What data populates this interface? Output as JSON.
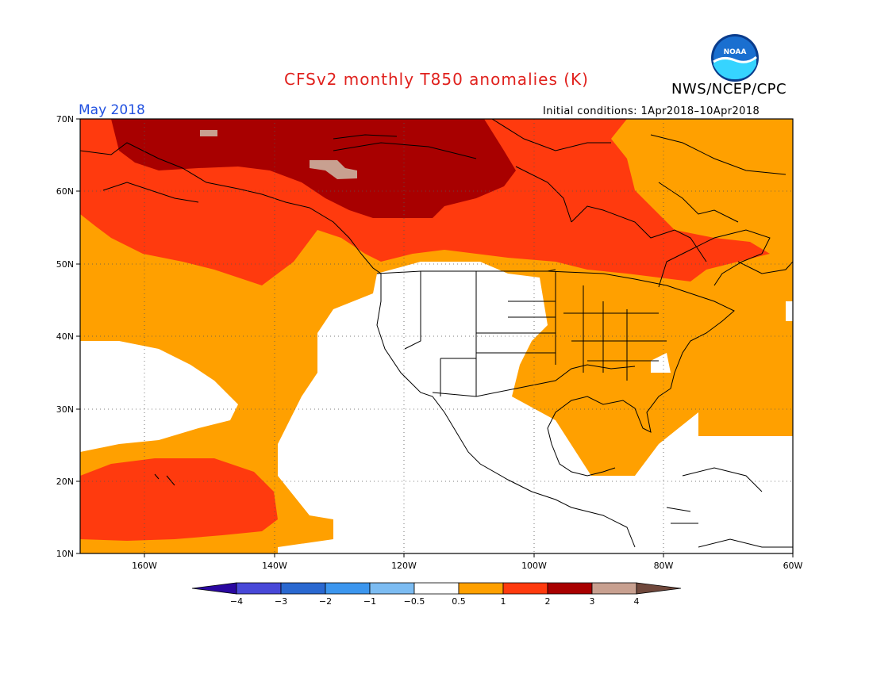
{
  "header": {
    "title": "CFSv2 monthly T850 anomalies (K)",
    "agency": "NWS/NCEP/CPC",
    "logo_text": "NOAA",
    "month": "May 2018",
    "initial_conditions": "Initial conditions: 1Apr2018–10Apr2018"
  },
  "axes": {
    "lat_labels": [
      "70N",
      "60N",
      "50N",
      "40N",
      "30N",
      "20N",
      "10N"
    ],
    "lon_labels": [
      "160W",
      "140W",
      "120W",
      "100W",
      "80W",
      "60W"
    ]
  },
  "colorbar": {
    "labels": [
      "−4",
      "−3",
      "−2",
      "−1",
      "−0.5",
      "0.5",
      "1",
      "2",
      "3",
      "4"
    ],
    "colors": [
      "#2a07a0",
      "#4848d8",
      "#2a68d0",
      "#3c96ee",
      "#7cbcf2",
      "#ffffff",
      "#ffa000",
      "#ff3a0e",
      "#a80000",
      "#c8a090",
      "#70483c"
    ]
  }
}
